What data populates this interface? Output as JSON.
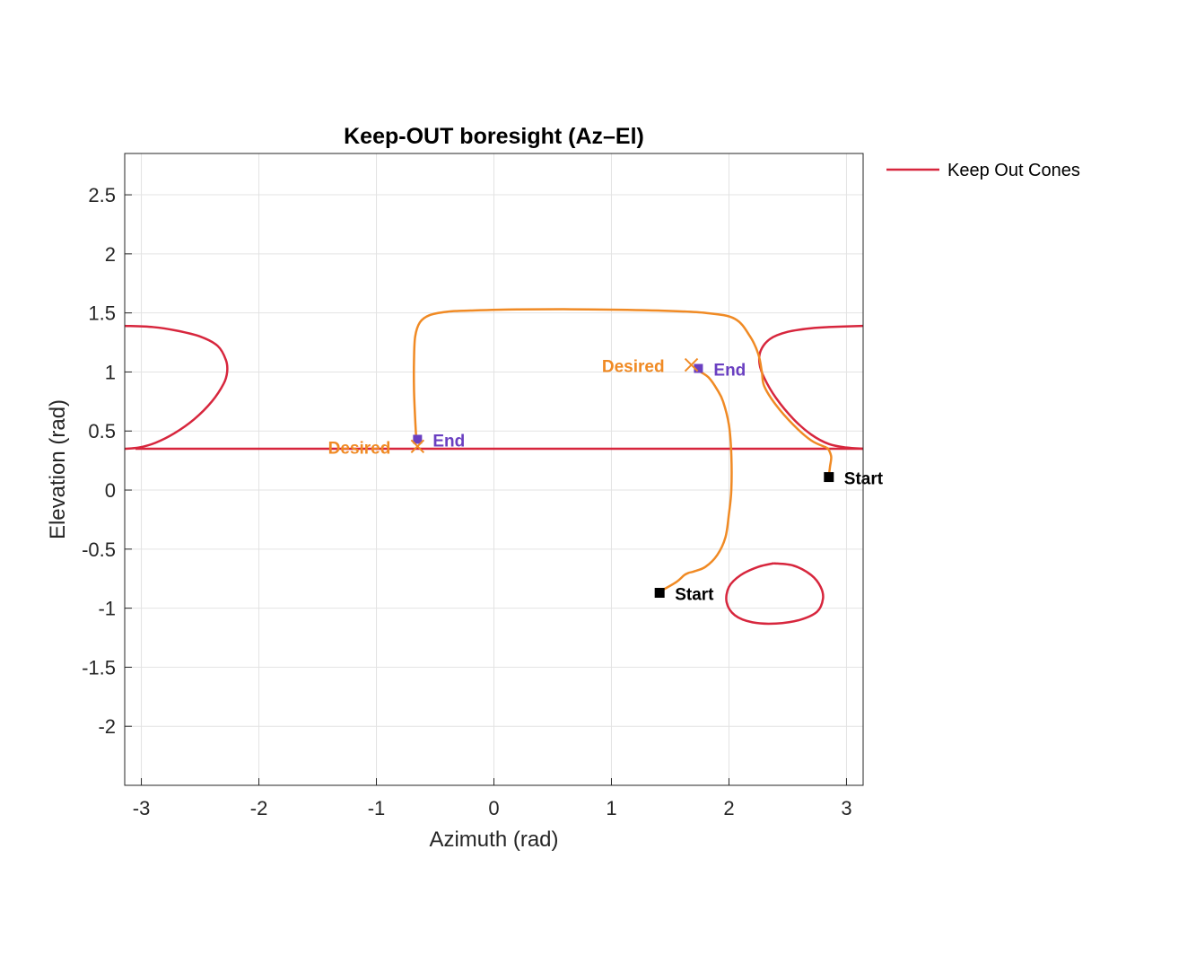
{
  "chart_data": {
    "type": "line",
    "title": "Keep-OUT boresight (Az–El)",
    "xlabel": "Azimuth (rad)",
    "ylabel": "Elevation (rad)",
    "xlim": [
      -3.1416,
      3.1416
    ],
    "ylim": [
      -2.5,
      2.85
    ],
    "xticks": [
      -3,
      -2,
      -1,
      0,
      1,
      2,
      3
    ],
    "xtick_labels": [
      "-3",
      "-2",
      "-1",
      "0",
      "1",
      "2",
      "3"
    ],
    "yticks": [
      -2,
      -1.5,
      -1,
      -0.5,
      0,
      0.5,
      1,
      1.5,
      2,
      2.5
    ],
    "ytick_labels": [
      "-2",
      "-1.5",
      "-1",
      "-0.5",
      "0",
      "0.5",
      "1",
      "1.5",
      "2",
      "2.5"
    ],
    "grid": true,
    "legend": {
      "placement": "outside-top-right",
      "entries": [
        "Keep Out Cones"
      ]
    },
    "colors": {
      "cone": "#d7263d",
      "trajectory": "#f08a24",
      "desired": "#f08a24",
      "end": "#6a3fc1",
      "start": "#000000"
    },
    "keep_out_cones": [
      {
        "name": "Keep Out Cones",
        "x": [
          -3.14,
          -2.9,
          -2.7,
          -2.5,
          -2.35,
          -2.28,
          -2.27,
          -2.3,
          -2.4,
          -2.55,
          -2.72,
          -2.88,
          -3.02,
          -3.14
        ],
        "y": [
          1.39,
          1.38,
          1.35,
          1.3,
          1.22,
          1.1,
          1.0,
          0.9,
          0.75,
          0.6,
          0.48,
          0.4,
          0.36,
          0.35
        ]
      },
      {
        "x": [
          -3.05,
          3.14
        ],
        "y": [
          0.35,
          0.35
        ]
      },
      {
        "x": [
          3.14,
          2.85,
          2.7,
          2.5,
          2.35,
          2.27,
          2.26,
          2.3,
          2.4,
          2.55,
          2.7,
          2.85,
          3.0,
          3.14
        ],
        "y": [
          1.39,
          1.38,
          1.37,
          1.34,
          1.28,
          1.18,
          1.07,
          0.95,
          0.78,
          0.6,
          0.47,
          0.39,
          0.36,
          0.35
        ]
      },
      {
        "x": [
          2.38,
          2.55,
          2.7,
          2.78,
          2.8,
          2.75,
          2.6,
          2.4,
          2.2,
          2.05,
          1.98,
          2.0,
          2.1,
          2.25,
          2.38
        ],
        "y": [
          -0.62,
          -0.64,
          -0.72,
          -0.82,
          -0.92,
          -1.03,
          -1.1,
          -1.13,
          -1.12,
          -1.06,
          -0.95,
          -0.82,
          -0.72,
          -0.65,
          -0.62
        ]
      }
    ],
    "trajectories": [
      {
        "x": [
          -0.66,
          -0.67,
          -0.68,
          -0.68,
          -0.67,
          -0.63,
          -0.55,
          -0.4,
          -0.2,
          0.2,
          0.8,
          1.4,
          1.8,
          2.05,
          2.18,
          2.25,
          2.28,
          2.3,
          2.4,
          2.55,
          2.7,
          2.83
        ],
        "y": [
          0.42,
          0.6,
          0.85,
          1.1,
          1.3,
          1.42,
          1.48,
          1.51,
          1.52,
          1.53,
          1.53,
          1.52,
          1.5,
          1.45,
          1.3,
          1.15,
          1.0,
          0.88,
          0.72,
          0.55,
          0.42,
          0.36
        ]
      },
      {
        "x": [
          2.85,
          2.86,
          2.87,
          2.85,
          2.83
        ],
        "y": [
          0.12,
          0.2,
          0.28,
          0.34,
          0.36
        ]
      },
      {
        "x": [
          1.41,
          1.55,
          1.62,
          1.66,
          1.7,
          1.8,
          1.9,
          1.97,
          2.0,
          2.02,
          2.02,
          2.0,
          1.95,
          1.9,
          1.83,
          1.76,
          1.73
        ],
        "y": [
          -0.86,
          -0.78,
          -0.72,
          -0.7,
          -0.69,
          -0.65,
          -0.55,
          -0.4,
          -0.2,
          0.0,
          0.3,
          0.55,
          0.75,
          0.85,
          0.95,
          1.0,
          1.02
        ]
      }
    ],
    "markers": [
      {
        "kind": "start",
        "x": 2.85,
        "y": 0.11,
        "label": "Start"
      },
      {
        "kind": "start",
        "x": 1.41,
        "y": -0.87,
        "label": "Start"
      },
      {
        "kind": "end",
        "x": -0.65,
        "y": 0.43,
        "label": "End"
      },
      {
        "kind": "end",
        "x": 1.74,
        "y": 1.03,
        "label": "End"
      },
      {
        "kind": "desired",
        "x": -0.65,
        "y": 0.37,
        "label": "Desired"
      },
      {
        "kind": "desired",
        "x": 1.68,
        "y": 1.06,
        "label": "Desired"
      }
    ]
  }
}
